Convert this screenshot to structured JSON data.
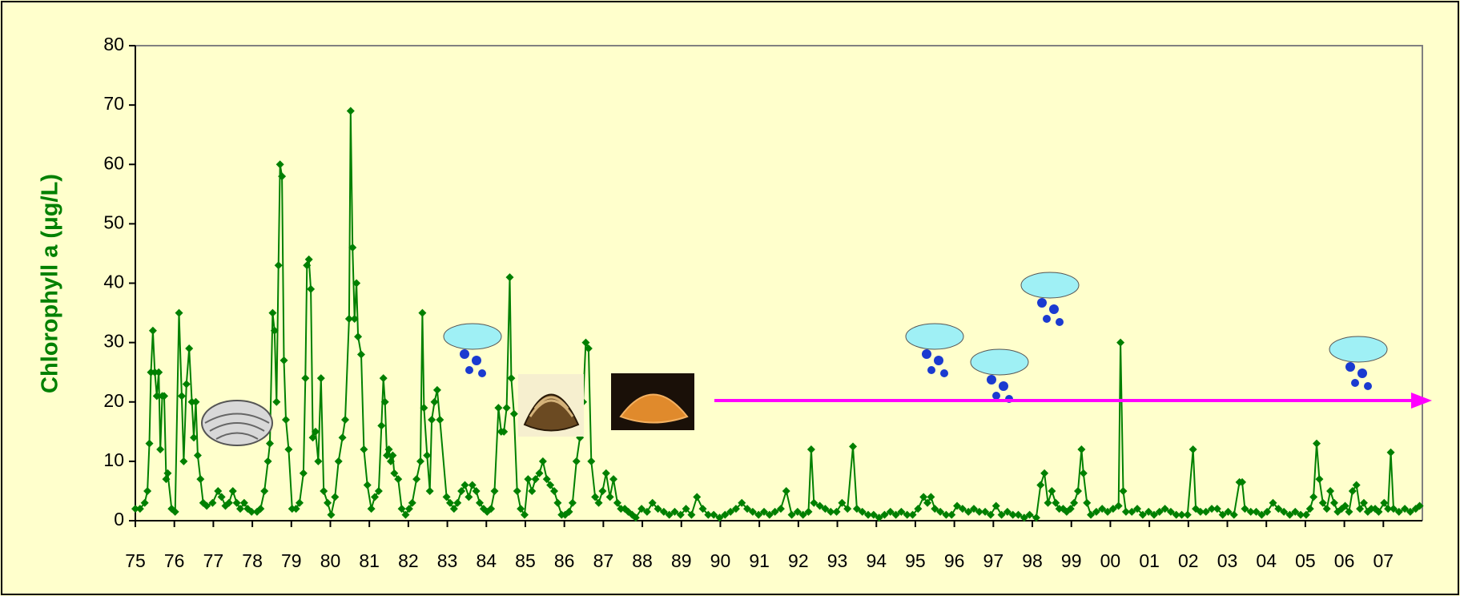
{
  "chart_data": {
    "type": "line",
    "ylabel": "Chlorophyll a (μg/L)",
    "color": "#008000",
    "xlim": [
      1975,
      2008
    ],
    "ylim": [
      0,
      80
    ],
    "yticks": [
      0,
      10,
      20,
      30,
      40,
      50,
      60,
      70,
      80
    ],
    "xticks": [
      {
        "value": 1975,
        "label": "75"
      },
      {
        "value": 1976,
        "label": "76"
      },
      {
        "value": 1977,
        "label": "77"
      },
      {
        "value": 1978,
        "label": "78"
      },
      {
        "value": 1979,
        "label": "79"
      },
      {
        "value": 1980,
        "label": "80"
      },
      {
        "value": 1981,
        "label": "81"
      },
      {
        "value": 1982,
        "label": "82"
      },
      {
        "value": 1983,
        "label": "83"
      },
      {
        "value": 1984,
        "label": "84"
      },
      {
        "value": 1985,
        "label": "85"
      },
      {
        "value": 1986,
        "label": "86"
      },
      {
        "value": 1987,
        "label": "87"
      },
      {
        "value": 1988,
        "label": "88"
      },
      {
        "value": 1989,
        "label": "89"
      },
      {
        "value": 1990,
        "label": "90"
      },
      {
        "value": 1991,
        "label": "91"
      },
      {
        "value": 1992,
        "label": "92"
      },
      {
        "value": 1993,
        "label": "93"
      },
      {
        "value": 1994,
        "label": "94"
      },
      {
        "value": 1995,
        "label": "95"
      },
      {
        "value": 1996,
        "label": "96"
      },
      {
        "value": 1997,
        "label": "97"
      },
      {
        "value": 1998,
        "label": "98"
      },
      {
        "value": 1999,
        "label": "99"
      },
      {
        "value": 2000,
        "label": "00"
      },
      {
        "value": 2001,
        "label": "01"
      },
      {
        "value": 2002,
        "label": "02"
      },
      {
        "value": 2003,
        "label": "03"
      },
      {
        "value": 2004,
        "label": "04"
      },
      {
        "value": 2005,
        "label": "05"
      },
      {
        "value": 2006,
        "label": "06"
      },
      {
        "value": 2007,
        "label": "07"
      }
    ],
    "x": [
      1975,
      1975.12,
      1975.24,
      1975.31,
      1975.36,
      1975.4,
      1975.45,
      1975.5,
      1975.55,
      1975.6,
      1975.64,
      1975.69,
      1975.74,
      1975.79,
      1975.83,
      1975.93,
      1976.02,
      1976.12,
      1976.19,
      1976.24,
      1976.31,
      1976.38,
      1976.45,
      1976.5,
      1976.55,
      1976.6,
      1976.67,
      1976.74,
      1976.83,
      1976.98,
      1977.12,
      1977.21,
      1977.31,
      1977.4,
      1977.5,
      1977.6,
      1977.69,
      1977.79,
      1977.88,
      1977.98,
      1978.12,
      1978.21,
      1978.31,
      1978.4,
      1978.45,
      1978.52,
      1978.57,
      1978.62,
      1978.67,
      1978.71,
      1978.76,
      1978.81,
      1978.86,
      1978.93,
      1979.02,
      1979.12,
      1979.21,
      1979.31,
      1979.36,
      1979.4,
      1979.45,
      1979.5,
      1979.55,
      1979.62,
      1979.69,
      1979.76,
      1979.83,
      1979.93,
      1980.02,
      1980.12,
      1980.21,
      1980.31,
      1980.38,
      1980.48,
      1980.52,
      1980.57,
      1980.62,
      1980.67,
      1980.71,
      1980.79,
      1980.86,
      1980.95,
      1981.05,
      1981.14,
      1981.24,
      1981.31,
      1981.36,
      1981.4,
      1981.45,
      1981.5,
      1981.55,
      1981.6,
      1981.64,
      1981.74,
      1981.83,
      1981.93,
      1982.02,
      1982.1,
      1982.21,
      1982.31,
      1982.36,
      1982.4,
      1982.48,
      1982.55,
      1982.6,
      1982.67,
      1982.74,
      1982.81,
      1982.98,
      1983.07,
      1983.17,
      1983.26,
      1983.36,
      1983.45,
      1983.55,
      1983.64,
      1983.74,
      1983.83,
      1983.93,
      1984.02,
      1984.12,
      1984.21,
      1984.31,
      1984.38,
      1984.45,
      1984.52,
      1984.6,
      1984.64,
      1984.71,
      1984.79,
      1984.88,
      1984.98,
      1985.07,
      1985.17,
      1985.26,
      1985.36,
      1985.45,
      1985.55,
      1985.64,
      1985.74,
      1985.83,
      1985.93,
      1986.02,
      1986.12,
      1986.21,
      1986.31,
      1986.4,
      1986.48,
      1986.55,
      1986.62,
      1986.69,
      1986.79,
      1986.88,
      1986.98,
      1987.07,
      1987.17,
      1987.26,
      1987.36,
      1987.45,
      1987.55,
      1987.64,
      1987.74,
      1987.83,
      1987.98,
      1988.12,
      1988.26,
      1988.4,
      1988.55,
      1988.69,
      1988.83,
      1988.98,
      1989.12,
      1989.26,
      1989.4,
      1989.55,
      1989.69,
      1989.83,
      1989.98,
      1990.12,
      1990.26,
      1990.4,
      1990.55,
      1990.69,
      1990.83,
      1990.98,
      1991.12,
      1991.26,
      1991.4,
      1991.55,
      1991.69,
      1991.83,
      1991.98,
      1992.12,
      1992.26,
      1992.33,
      1992.4,
      1992.55,
      1992.69,
      1992.83,
      1992.98,
      1993.12,
      1993.26,
      1993.4,
      1993.5,
      1993.64,
      1993.79,
      1993.93,
      1994.07,
      1994.21,
      1994.36,
      1994.5,
      1994.64,
      1994.79,
      1994.93,
      1995.07,
      1995.21,
      1995.31,
      1995.4,
      1995.5,
      1995.64,
      1995.79,
      1995.93,
      1996.07,
      1996.21,
      1996.36,
      1996.5,
      1996.64,
      1996.79,
      1996.93,
      1997.07,
      1997.21,
      1997.36,
      1997.5,
      1997.64,
      1997.79,
      1997.93,
      1998.1,
      1998.21,
      1998.31,
      1998.4,
      1998.5,
      1998.6,
      1998.69,
      1998.79,
      1998.88,
      1998.98,
      1999.07,
      1999.17,
      1999.26,
      1999.31,
      1999.4,
      1999.5,
      1999.64,
      1999.79,
      1999.93,
      2000.07,
      2000.21,
      2000.26,
      2000.33,
      2000.4,
      2000.55,
      2000.69,
      2000.83,
      2000.98,
      2001.12,
      2001.26,
      2001.4,
      2001.55,
      2001.69,
      2001.83,
      2001.98,
      2002.12,
      2002.19,
      2002.31,
      2002.45,
      2002.6,
      2002.74,
      2002.88,
      2003.02,
      2003.17,
      2003.31,
      2003.38,
      2003.45,
      2003.6,
      2003.74,
      2003.88,
      2004.02,
      2004.17,
      2004.31,
      2004.45,
      2004.6,
      2004.74,
      2004.88,
      2005.02,
      2005.12,
      2005.21,
      2005.29,
      2005.36,
      2005.45,
      2005.55,
      2005.64,
      2005.74,
      2005.83,
      2005.93,
      2006.02,
      2006.12,
      2006.21,
      2006.31,
      2006.4,
      2006.5,
      2006.6,
      2006.69,
      2006.79,
      2006.88,
      2007.02,
      2007.12,
      2007.19,
      2007.26,
      2007.4,
      2007.55,
      2007.69,
      2007.83,
      2007.93
    ],
    "values": [
      2,
      2,
      3,
      5,
      13,
      25,
      32,
      25,
      21,
      25,
      12,
      21,
      21,
      7,
      8,
      2,
      1.5,
      35,
      21,
      10,
      23,
      29,
      20,
      14,
      20,
      11,
      7,
      3,
      2.5,
      3,
      5,
      4,
      2.5,
      3,
      5,
      3,
      2,
      3,
      2,
      1.5,
      1.5,
      2,
      5,
      10,
      13,
      35,
      32,
      20,
      43,
      60,
      58,
      27,
      17,
      12,
      2,
      2,
      3,
      8,
      24,
      43,
      44,
      39,
      14,
      15,
      10,
      24,
      5,
      3,
      1,
      4,
      10,
      14,
      17,
      34,
      69,
      46,
      34,
      40,
      31,
      28,
      12,
      6,
      2,
      4,
      5,
      16,
      24,
      20,
      11,
      12,
      10,
      11,
      8,
      7,
      2,
      1,
      2,
      3,
      7,
      10,
      35,
      19,
      11,
      5,
      17,
      20,
      22,
      17,
      4,
      3,
      2,
      3,
      5,
      6,
      4,
      6,
      5,
      3,
      2,
      1.5,
      2,
      5,
      19,
      15,
      15,
      19,
      41,
      24,
      18,
      5,
      2,
      1,
      7,
      5,
      7,
      8,
      10,
      7,
      6,
      5,
      3,
      1,
      1,
      1.5,
      3,
      10,
      14,
      20,
      30,
      29,
      10,
      4,
      3,
      5,
      8,
      4,
      7,
      3,
      2,
      2,
      1.5,
      1,
      0.5,
      2,
      1.5,
      3,
      2,
      1.5,
      1,
      1.5,
      1,
      2,
      1,
      4,
      2,
      1,
      1,
      0.5,
      1,
      1.5,
      2,
      3,
      2,
      1.5,
      1,
      1.5,
      1,
      1.5,
      2,
      5,
      1,
      1.5,
      1,
      1.5,
      12,
      3,
      2.5,
      2,
      1.5,
      1.5,
      3,
      2,
      12.5,
      2,
      1.5,
      1,
      1,
      0.5,
      1,
      1.5,
      1,
      1.5,
      1,
      1,
      2,
      4,
      3,
      4,
      2,
      1.5,
      1,
      1,
      2.5,
      2,
      1.5,
      2,
      1.5,
      1.5,
      1,
      2.5,
      1,
      1.5,
      1,
      1,
      0.5,
      1,
      0.5,
      6,
      8,
      3,
      5,
      3,
      2,
      2,
      1.5,
      2,
      3,
      5,
      12,
      8,
      3,
      1,
      1.5,
      2,
      1.5,
      2,
      2.5,
      30,
      5,
      1.5,
      1.5,
      2,
      1,
      1.5,
      1,
      1.5,
      2,
      1.5,
      1,
      1,
      1,
      12,
      2,
      1.5,
      1.5,
      2,
      2,
      1,
      1.5,
      1,
      6.5,
      6.5,
      2,
      1.5,
      1.5,
      1,
      1.5,
      3,
      2,
      1.5,
      1,
      1.5,
      1,
      1,
      2,
      4,
      13,
      7,
      3,
      2,
      5,
      3,
      1.5,
      2,
      2.5,
      1.5,
      5,
      6,
      2,
      3,
      1.5,
      2,
      2,
      1.5,
      3,
      2,
      11.5,
      2,
      1.5,
      2,
      1.5,
      2,
      2.5
    ]
  }
}
